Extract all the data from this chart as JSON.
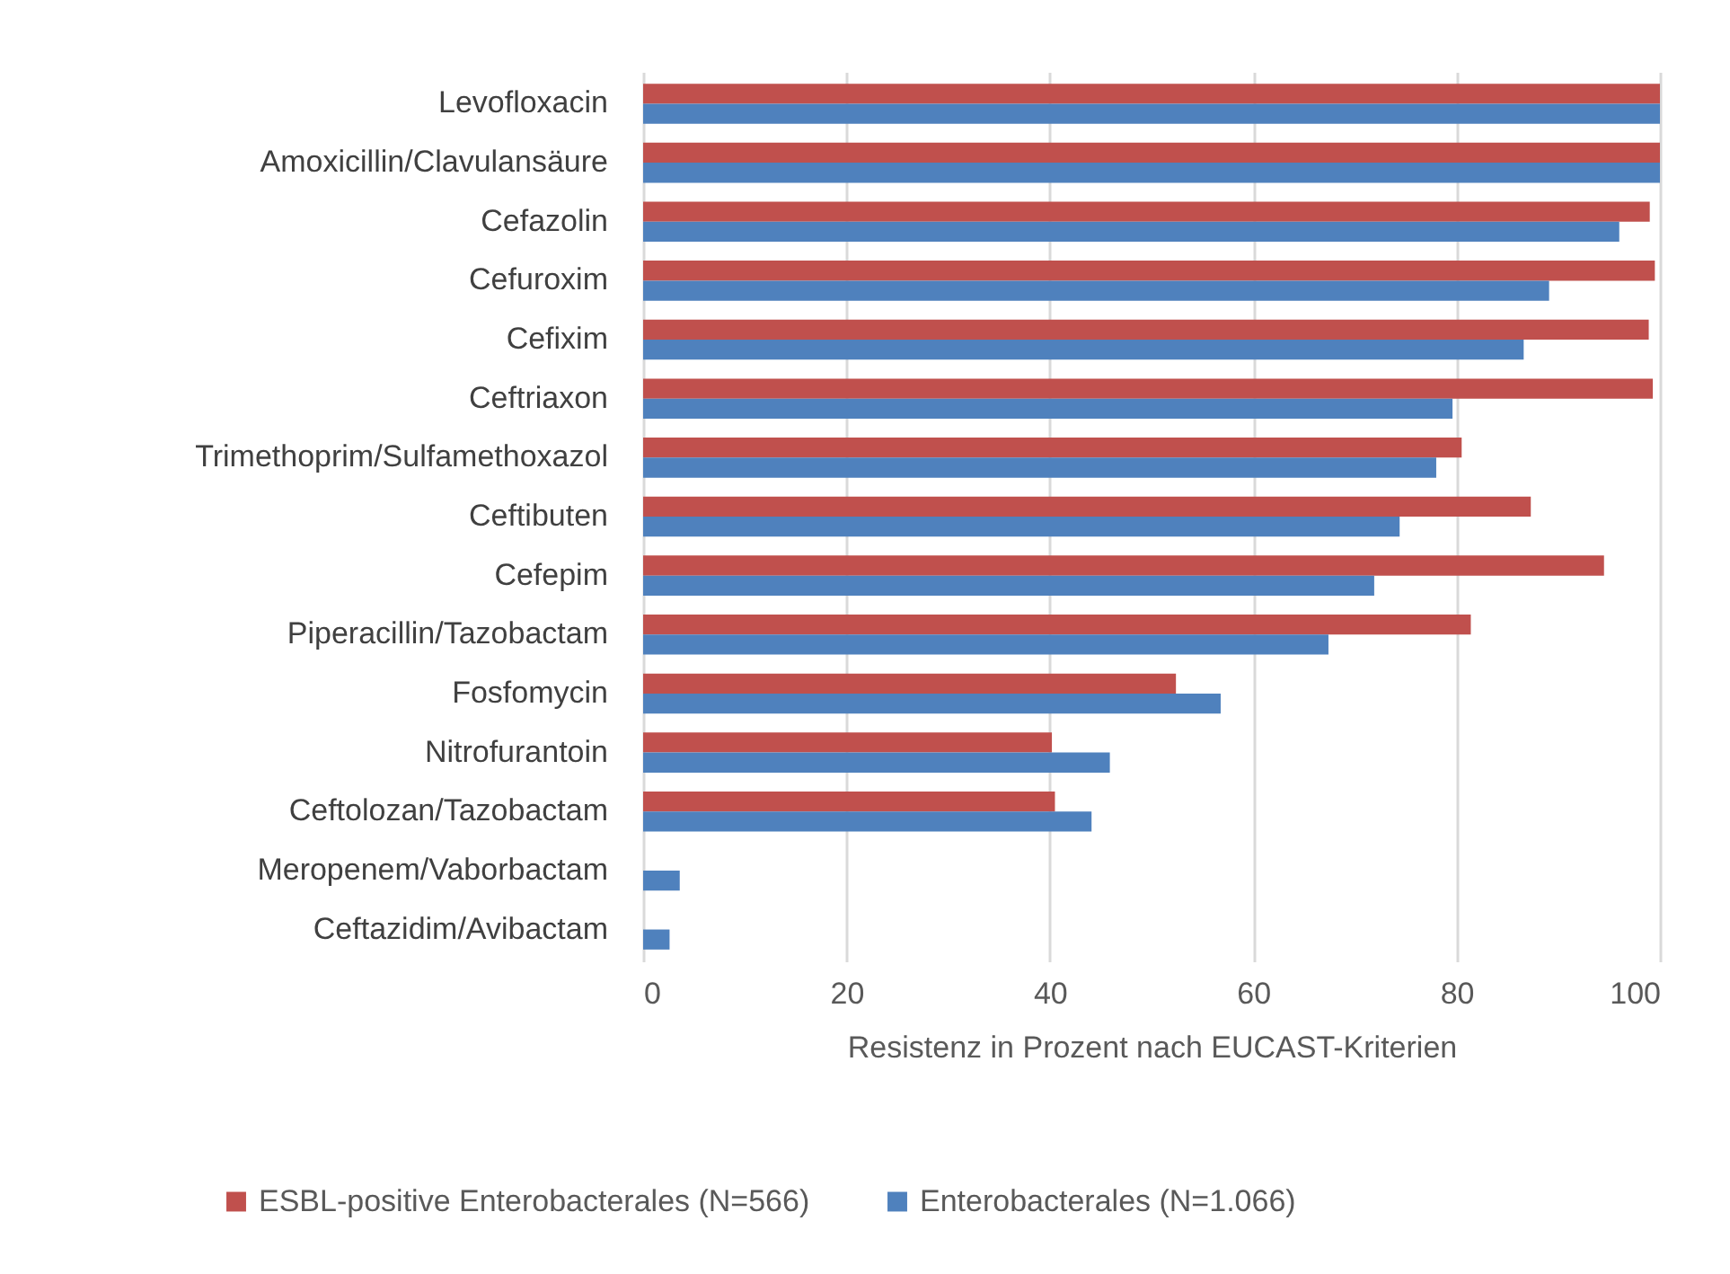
{
  "chart_data": {
    "type": "bar",
    "orientation": "horizontal",
    "xlabel": "Resistenz in Prozent nach EUCAST-Kriterien",
    "categories": [
      "Levofloxacin",
      "Amoxicillin/Clavulansäure",
      "Cefazolin",
      "Cefuroxim",
      "Cefixim",
      "Ceftriaxon",
      "Trimethoprim/Sulfamethoxazol",
      "Ceftibuten",
      "Cefepim",
      "Piperacillin/Tazobactam",
      "Fosfomycin",
      "Nitrofurantoin",
      "Ceftolozan/Tazobactam",
      "Meropenem/Vaborbactam",
      "Ceftazidim/Avibactam"
    ],
    "series": [
      {
        "name": "ESBL-positive Enterobacterales (N=566)",
        "color": "#c0504d",
        "values": [
          100,
          100,
          99,
          99.5,
          98.9,
          99.3,
          80.5,
          87.3,
          94.5,
          81.4,
          52.4,
          40.2,
          40.5,
          null,
          null
        ]
      },
      {
        "name": "Enterobacterales (N=1.066)",
        "color": "#4f81bd",
        "values": [
          100,
          100,
          96,
          89.1,
          86.6,
          79.6,
          78,
          74.4,
          71.9,
          67.4,
          56.8,
          45.9,
          44.1,
          3.6,
          2.6
        ]
      }
    ],
    "xlim": [
      0,
      100
    ],
    "xticks": [
      0,
      20,
      40,
      60,
      80,
      100
    ],
    "grid": "x",
    "legend": "bottom"
  }
}
